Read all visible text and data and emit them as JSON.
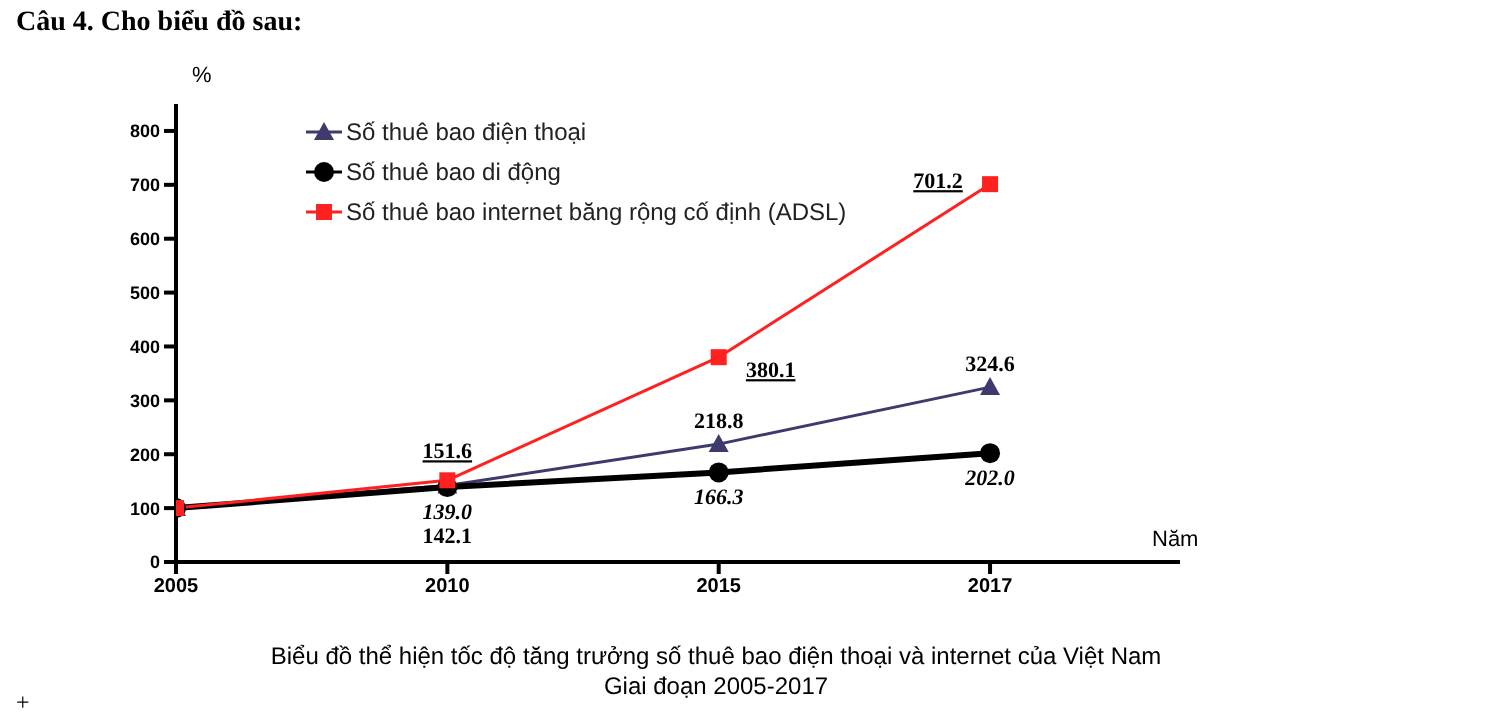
{
  "chart_data": {
    "type": "line",
    "title": "Câu 4. Cho biểu đồ sau:",
    "ylabel": "%",
    "xlabel": "Năm",
    "categories": [
      "2005",
      "2010",
      "2015",
      "2017"
    ],
    "series": [
      {
        "name": "Số thuê bao điện thoại",
        "color": "#3d3a6e",
        "marker": "triangle",
        "values": [
          100,
          142.1,
          218.8,
          324.6
        ],
        "value_labels": [
          null,
          "142.1",
          "218.8",
          "324.6"
        ]
      },
      {
        "name": "Số thuê bao di động",
        "color": "#000000",
        "marker": "circle",
        "values": [
          100,
          139.0,
          166.3,
          202.0
        ],
        "value_labels": [
          null,
          "139.0",
          "166.3",
          "202.0"
        ]
      },
      {
        "name": "Số thuê bao internet băng rộng cố định (ADSL)",
        "color": "#ff2020",
        "marker": "square",
        "values": [
          100,
          151.6,
          380.1,
          701.2
        ],
        "value_labels": [
          null,
          "151.6",
          "380.1",
          "701.2"
        ]
      }
    ],
    "ylim": [
      0,
      850
    ],
    "yticks": [
      0,
      100,
      200,
      300,
      400,
      500,
      600,
      700,
      800
    ],
    "grid": false,
    "legend": "top left",
    "annotations": [
      "Biểu đồ thể hiện tốc độ tăng trưởng số thuê bao điện thoại và internet của Việt Nam",
      "Giai đoạn 2005-2017",
      "+"
    ]
  }
}
